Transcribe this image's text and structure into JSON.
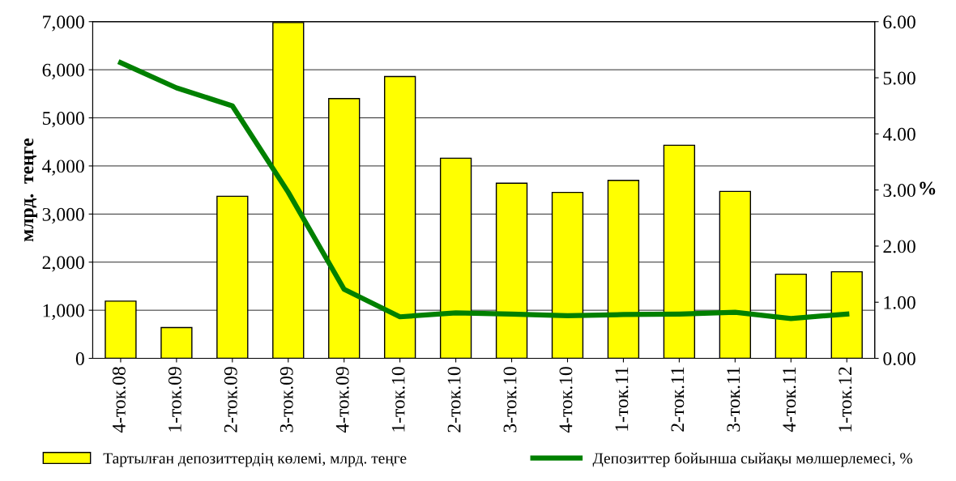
{
  "chart_data": {
    "type": "bar",
    "ylabel": "млрд.  теңге",
    "y2label": "%",
    "categories": [
      "4-ток.08",
      "1-ток.09",
      "2-ток.09",
      "3-ток.09",
      "4-ток.09",
      "1-ток.10",
      "2-ток.10",
      "3-ток.10",
      "4-ток.10",
      "1-ток.11",
      "2-ток.11",
      "3-ток.11",
      "4-ток.11",
      "1-ток.12"
    ],
    "series": [
      {
        "name": "Тартылған депозиттердің көлемі, млрд. теңге",
        "color": "#ffff00",
        "values": [
          1190,
          640,
          3370,
          6980,
          5400,
          5860,
          4160,
          3640,
          3450,
          3700,
          4430,
          3470,
          1750,
          1800
        ]
      },
      {
        "name": "Депозиттер бойынша сыйақы мөлшерлемесі, %",
        "type": "line",
        "axis": "y2",
        "color": "#008000",
        "values": [
          5.27,
          4.82,
          4.5,
          2.96,
          1.23,
          0.74,
          0.81,
          0.79,
          0.76,
          0.78,
          0.79,
          0.82,
          0.71,
          0.79
        ]
      }
    ],
    "ylim": [
      0,
      7000
    ],
    "yticks": [
      {
        "value": 0,
        "label": "0"
      },
      {
        "value": 1000,
        "label": "1,000"
      },
      {
        "value": 2000,
        "label": "2,000"
      },
      {
        "value": 3000,
        "label": "3,000"
      },
      {
        "value": 4000,
        "label": "4,000"
      },
      {
        "value": 5000,
        "label": "5,000"
      },
      {
        "value": 6000,
        "label": "6,000"
      },
      {
        "value": 7000,
        "label": "7,000"
      }
    ],
    "y2lim": [
      0,
      6
    ],
    "y2ticks": [
      {
        "value": 0,
        "label": "0.00"
      },
      {
        "value": 1,
        "label": "1.00"
      },
      {
        "value": 2,
        "label": "2.00"
      },
      {
        "value": 3,
        "label": "3.00"
      },
      {
        "value": 4,
        "label": "4.00"
      },
      {
        "value": 5,
        "label": "5.00"
      },
      {
        "value": 6,
        "label": "6.00"
      }
    ],
    "grid": "y",
    "legend": "bottom",
    "marker": "none",
    "line_style": "solid"
  }
}
